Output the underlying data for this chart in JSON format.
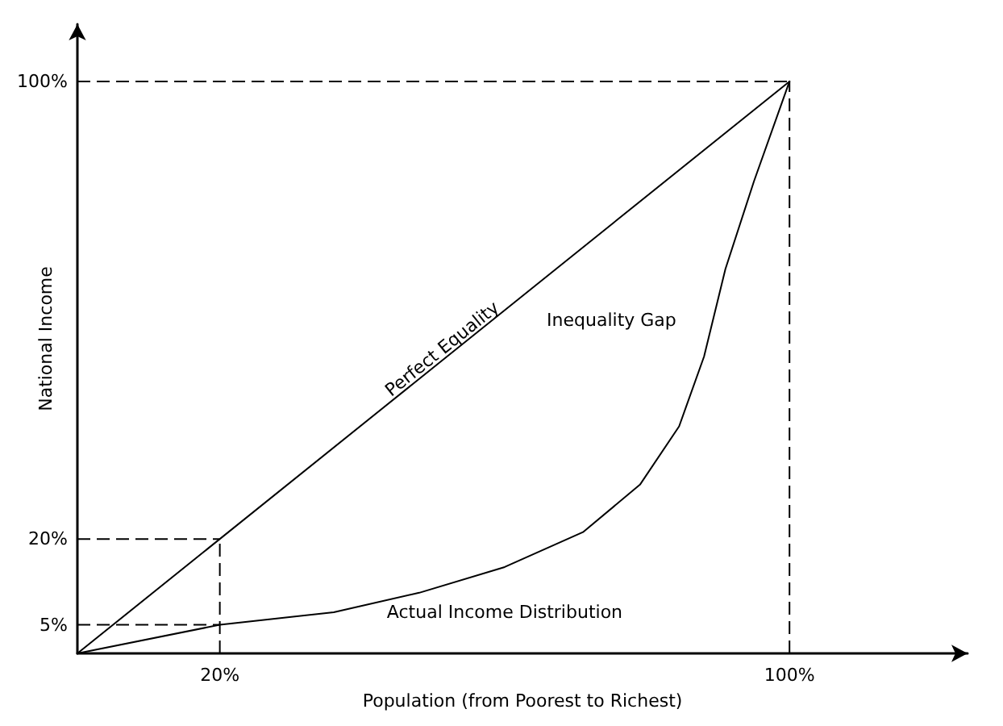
{
  "chart_data": {
    "type": "line",
    "xlabel": "Population (from Poorest to Richest)",
    "ylabel": "National Income",
    "xlim": [
      0,
      125
    ],
    "ylim": [
      0,
      110
    ],
    "xticks": [
      {
        "value": 20,
        "label": "20%"
      },
      {
        "value": 100,
        "label": "100%"
      }
    ],
    "yticks": [
      {
        "value": 5,
        "label": "5%"
      },
      {
        "value": 20,
        "label": "20%"
      },
      {
        "value": 100,
        "label": "100%"
      }
    ],
    "series": [
      {
        "color": "#000000",
        "x": [
          0,
          100
        ],
        "values": [
          0,
          100
        ]
      },
      {
        "color": "#000000",
        "x": [
          0,
          20,
          36,
          48,
          60,
          71,
          79,
          84.5,
          88,
          91,
          95,
          100
        ],
        "values": [
          0,
          5,
          7.2,
          10.6,
          15.1,
          21.2,
          29.5,
          39.7,
          51.9,
          67.2,
          82.5,
          100
        ]
      }
    ],
    "ref_lines": [
      {
        "axis": "y",
        "value": 5,
        "line_style": "dashed",
        "color": "#000000"
      },
      {
        "axis": "y",
        "value": 20,
        "line_style": "dashed",
        "color": "#000000"
      },
      {
        "axis": "y",
        "value": 100,
        "line_style": "dashed",
        "color": "#000000"
      },
      {
        "axis": "x",
        "value": 20,
        "line_style": "dashed",
        "color": "#000000"
      },
      {
        "axis": "x",
        "value": 100,
        "line_style": "dashed",
        "color": "#000000"
      }
    ],
    "annotations": [
      {
        "text": "Perfect Equality",
        "x": 52,
        "y": 52
      },
      "Inequality Gap",
      "Actual Income Distribution"
    ],
    "grid": false,
    "marker": "none",
    "line_style": "solid"
  }
}
